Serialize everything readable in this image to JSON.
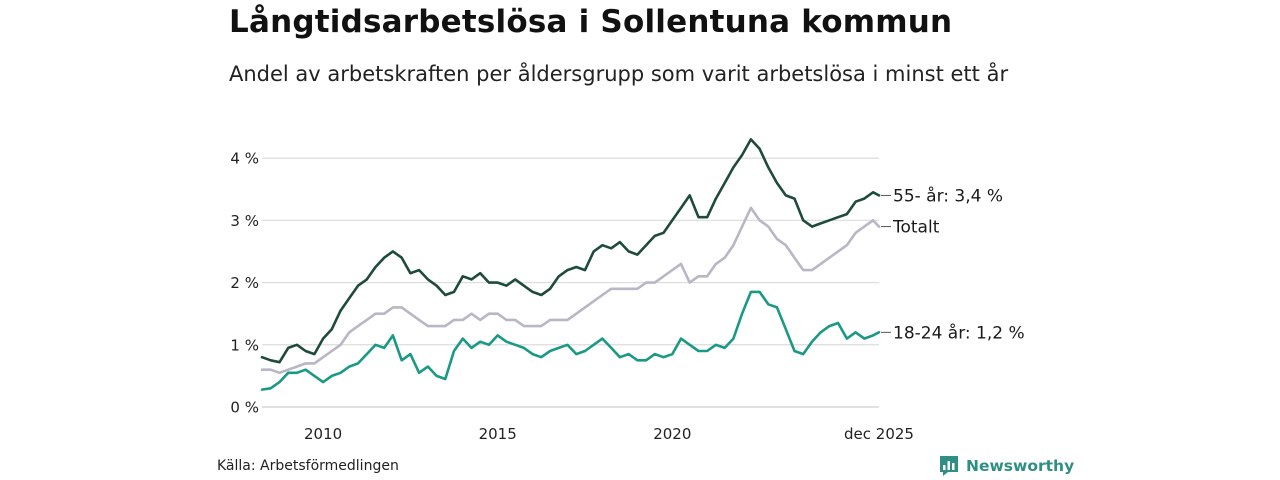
{
  "header": {
    "title": "Långtidsarbetslösa i Sollentuna kommun",
    "subtitle": "Andel av arbetskraften per åldersgrupp som varit arbetslösa i minst ett år"
  },
  "footer": {
    "source": "Källa: Arbetsförmedlingen",
    "brand": "Newsworthy"
  },
  "colors": {
    "series_55": "#1f4a3e",
    "series_total": "#b9b6c6",
    "series_18_24": "#1a9985",
    "grid": "#dcdcdc",
    "brand": "#2f8f83"
  },
  "chart_data": {
    "type": "line",
    "title": "Långtidsarbetslösa i Sollentuna kommun",
    "subtitle": "Andel av arbetskraften per åldersgrupp som varit arbetslösa i minst ett år",
    "xlabel": "",
    "ylabel": "",
    "x_range": [
      2008.25,
      2025.92
    ],
    "ylim": [
      0,
      4.5
    ],
    "grid": true,
    "y_ticks": [
      {
        "value": 0,
        "label": "0 %"
      },
      {
        "value": 1,
        "label": "1 %"
      },
      {
        "value": 2,
        "label": "2 %"
      },
      {
        "value": 3,
        "label": "3 %"
      },
      {
        "value": 4,
        "label": "4 %"
      }
    ],
    "x_ticks": [
      {
        "value": 2010,
        "label": "2010"
      },
      {
        "value": 2015,
        "label": "2015"
      },
      {
        "value": 2020,
        "label": "2020"
      },
      {
        "value": 2025.92,
        "label": "dec 2025"
      }
    ],
    "series": [
      {
        "name": "55- år",
        "end_label": "55- år: 3,4 %",
        "color_key": "series_55",
        "points": [
          [
            2008.25,
            0.8
          ],
          [
            2008.5,
            0.75
          ],
          [
            2008.75,
            0.72
          ],
          [
            2009.0,
            0.95
          ],
          [
            2009.25,
            1.0
          ],
          [
            2009.5,
            0.9
          ],
          [
            2009.75,
            0.85
          ],
          [
            2010.0,
            1.1
          ],
          [
            2010.25,
            1.25
          ],
          [
            2010.5,
            1.55
          ],
          [
            2010.75,
            1.75
          ],
          [
            2011.0,
            1.95
          ],
          [
            2011.25,
            2.05
          ],
          [
            2011.5,
            2.25
          ],
          [
            2011.75,
            2.4
          ],
          [
            2012.0,
            2.5
          ],
          [
            2012.25,
            2.4
          ],
          [
            2012.5,
            2.15
          ],
          [
            2012.75,
            2.2
          ],
          [
            2013.0,
            2.05
          ],
          [
            2013.25,
            1.95
          ],
          [
            2013.5,
            1.8
          ],
          [
            2013.75,
            1.85
          ],
          [
            2014.0,
            2.1
          ],
          [
            2014.25,
            2.05
          ],
          [
            2014.5,
            2.15
          ],
          [
            2014.75,
            2.0
          ],
          [
            2015.0,
            2.0
          ],
          [
            2015.25,
            1.95
          ],
          [
            2015.5,
            2.05
          ],
          [
            2015.75,
            1.95
          ],
          [
            2016.0,
            1.85
          ],
          [
            2016.25,
            1.8
          ],
          [
            2016.5,
            1.9
          ],
          [
            2016.75,
            2.1
          ],
          [
            2017.0,
            2.2
          ],
          [
            2017.25,
            2.25
          ],
          [
            2017.5,
            2.2
          ],
          [
            2017.75,
            2.5
          ],
          [
            2018.0,
            2.6
          ],
          [
            2018.25,
            2.55
          ],
          [
            2018.5,
            2.65
          ],
          [
            2018.75,
            2.5
          ],
          [
            2019.0,
            2.45
          ],
          [
            2019.25,
            2.6
          ],
          [
            2019.5,
            2.75
          ],
          [
            2019.75,
            2.8
          ],
          [
            2020.0,
            3.0
          ],
          [
            2020.25,
            3.2
          ],
          [
            2020.5,
            3.4
          ],
          [
            2020.75,
            3.05
          ],
          [
            2021.0,
            3.05
          ],
          [
            2021.25,
            3.35
          ],
          [
            2021.5,
            3.6
          ],
          [
            2021.75,
            3.85
          ],
          [
            2022.0,
            4.05
          ],
          [
            2022.25,
            4.3
          ],
          [
            2022.5,
            4.15
          ],
          [
            2022.75,
            3.85
          ],
          [
            2023.0,
            3.6
          ],
          [
            2023.25,
            3.4
          ],
          [
            2023.5,
            3.35
          ],
          [
            2023.75,
            3.0
          ],
          [
            2024.0,
            2.9
          ],
          [
            2024.25,
            2.95
          ],
          [
            2024.5,
            3.0
          ],
          [
            2024.75,
            3.05
          ],
          [
            2025.0,
            3.1
          ],
          [
            2025.25,
            3.3
          ],
          [
            2025.5,
            3.35
          ],
          [
            2025.75,
            3.45
          ],
          [
            2025.92,
            3.4
          ]
        ]
      },
      {
        "name": "Totalt",
        "end_label": "Totalt",
        "color_key": "series_total",
        "points": [
          [
            2008.25,
            0.6
          ],
          [
            2008.5,
            0.6
          ],
          [
            2008.75,
            0.55
          ],
          [
            2009.0,
            0.6
          ],
          [
            2009.25,
            0.65
          ],
          [
            2009.5,
            0.7
          ],
          [
            2009.75,
            0.7
          ],
          [
            2010.0,
            0.8
          ],
          [
            2010.25,
            0.9
          ],
          [
            2010.5,
            1.0
          ],
          [
            2010.75,
            1.2
          ],
          [
            2011.0,
            1.3
          ],
          [
            2011.25,
            1.4
          ],
          [
            2011.5,
            1.5
          ],
          [
            2011.75,
            1.5
          ],
          [
            2012.0,
            1.6
          ],
          [
            2012.25,
            1.6
          ],
          [
            2012.5,
            1.5
          ],
          [
            2012.75,
            1.4
          ],
          [
            2013.0,
            1.3
          ],
          [
            2013.25,
            1.3
          ],
          [
            2013.5,
            1.3
          ],
          [
            2013.75,
            1.4
          ],
          [
            2014.0,
            1.4
          ],
          [
            2014.25,
            1.5
          ],
          [
            2014.5,
            1.4
          ],
          [
            2014.75,
            1.5
          ],
          [
            2015.0,
            1.5
          ],
          [
            2015.25,
            1.4
          ],
          [
            2015.5,
            1.4
          ],
          [
            2015.75,
            1.3
          ],
          [
            2016.0,
            1.3
          ],
          [
            2016.25,
            1.3
          ],
          [
            2016.5,
            1.4
          ],
          [
            2016.75,
            1.4
          ],
          [
            2017.0,
            1.4
          ],
          [
            2017.25,
            1.5
          ],
          [
            2017.5,
            1.6
          ],
          [
            2017.75,
            1.7
          ],
          [
            2018.0,
            1.8
          ],
          [
            2018.25,
            1.9
          ],
          [
            2018.5,
            1.9
          ],
          [
            2018.75,
            1.9
          ],
          [
            2019.0,
            1.9
          ],
          [
            2019.25,
            2.0
          ],
          [
            2019.5,
            2.0
          ],
          [
            2019.75,
            2.1
          ],
          [
            2020.0,
            2.2
          ],
          [
            2020.25,
            2.3
          ],
          [
            2020.5,
            2.0
          ],
          [
            2020.75,
            2.1
          ],
          [
            2021.0,
            2.1
          ],
          [
            2021.25,
            2.3
          ],
          [
            2021.5,
            2.4
          ],
          [
            2021.75,
            2.6
          ],
          [
            2022.0,
            2.9
          ],
          [
            2022.25,
            3.2
          ],
          [
            2022.5,
            3.0
          ],
          [
            2022.75,
            2.9
          ],
          [
            2023.0,
            2.7
          ],
          [
            2023.25,
            2.6
          ],
          [
            2023.5,
            2.4
          ],
          [
            2023.75,
            2.2
          ],
          [
            2024.0,
            2.2
          ],
          [
            2024.25,
            2.3
          ],
          [
            2024.5,
            2.4
          ],
          [
            2024.75,
            2.5
          ],
          [
            2025.0,
            2.6
          ],
          [
            2025.25,
            2.8
          ],
          [
            2025.5,
            2.9
          ],
          [
            2025.75,
            3.0
          ],
          [
            2025.92,
            2.9
          ]
        ]
      },
      {
        "name": "18-24 år",
        "end_label": "18-24 år: 1,2 %",
        "color_key": "series_18_24",
        "points": [
          [
            2008.25,
            0.28
          ],
          [
            2008.5,
            0.3
          ],
          [
            2008.75,
            0.4
          ],
          [
            2009.0,
            0.55
          ],
          [
            2009.25,
            0.55
          ],
          [
            2009.5,
            0.6
          ],
          [
            2009.75,
            0.5
          ],
          [
            2010.0,
            0.4
          ],
          [
            2010.25,
            0.5
          ],
          [
            2010.5,
            0.55
          ],
          [
            2010.75,
            0.65
          ],
          [
            2011.0,
            0.7
          ],
          [
            2011.25,
            0.85
          ],
          [
            2011.5,
            1.0
          ],
          [
            2011.75,
            0.95
          ],
          [
            2012.0,
            1.15
          ],
          [
            2012.25,
            0.75
          ],
          [
            2012.5,
            0.85
          ],
          [
            2012.75,
            0.55
          ],
          [
            2013.0,
            0.65
          ],
          [
            2013.25,
            0.5
          ],
          [
            2013.5,
            0.45
          ],
          [
            2013.75,
            0.9
          ],
          [
            2014.0,
            1.1
          ],
          [
            2014.25,
            0.95
          ],
          [
            2014.5,
            1.05
          ],
          [
            2014.75,
            1.0
          ],
          [
            2015.0,
            1.15
          ],
          [
            2015.25,
            1.05
          ],
          [
            2015.5,
            1.0
          ],
          [
            2015.75,
            0.95
          ],
          [
            2016.0,
            0.85
          ],
          [
            2016.25,
            0.8
          ],
          [
            2016.5,
            0.9
          ],
          [
            2016.75,
            0.95
          ],
          [
            2017.0,
            1.0
          ],
          [
            2017.25,
            0.85
          ],
          [
            2017.5,
            0.9
          ],
          [
            2017.75,
            1.0
          ],
          [
            2018.0,
            1.1
          ],
          [
            2018.25,
            0.95
          ],
          [
            2018.5,
            0.8
          ],
          [
            2018.75,
            0.85
          ],
          [
            2019.0,
            0.75
          ],
          [
            2019.25,
            0.75
          ],
          [
            2019.5,
            0.85
          ],
          [
            2019.75,
            0.8
          ],
          [
            2020.0,
            0.85
          ],
          [
            2020.25,
            1.1
          ],
          [
            2020.5,
            1.0
          ],
          [
            2020.75,
            0.9
          ],
          [
            2021.0,
            0.9
          ],
          [
            2021.25,
            1.0
          ],
          [
            2021.5,
            0.95
          ],
          [
            2021.75,
            1.1
          ],
          [
            2022.0,
            1.5
          ],
          [
            2022.25,
            1.85
          ],
          [
            2022.5,
            1.85
          ],
          [
            2022.75,
            1.65
          ],
          [
            2023.0,
            1.6
          ],
          [
            2023.25,
            1.25
          ],
          [
            2023.5,
            0.9
          ],
          [
            2023.75,
            0.85
          ],
          [
            2024.0,
            1.05
          ],
          [
            2024.25,
            1.2
          ],
          [
            2024.5,
            1.3
          ],
          [
            2024.75,
            1.35
          ],
          [
            2025.0,
            1.1
          ],
          [
            2025.25,
            1.2
          ],
          [
            2025.5,
            1.1
          ],
          [
            2025.75,
            1.15
          ],
          [
            2025.92,
            1.2
          ]
        ]
      }
    ]
  }
}
